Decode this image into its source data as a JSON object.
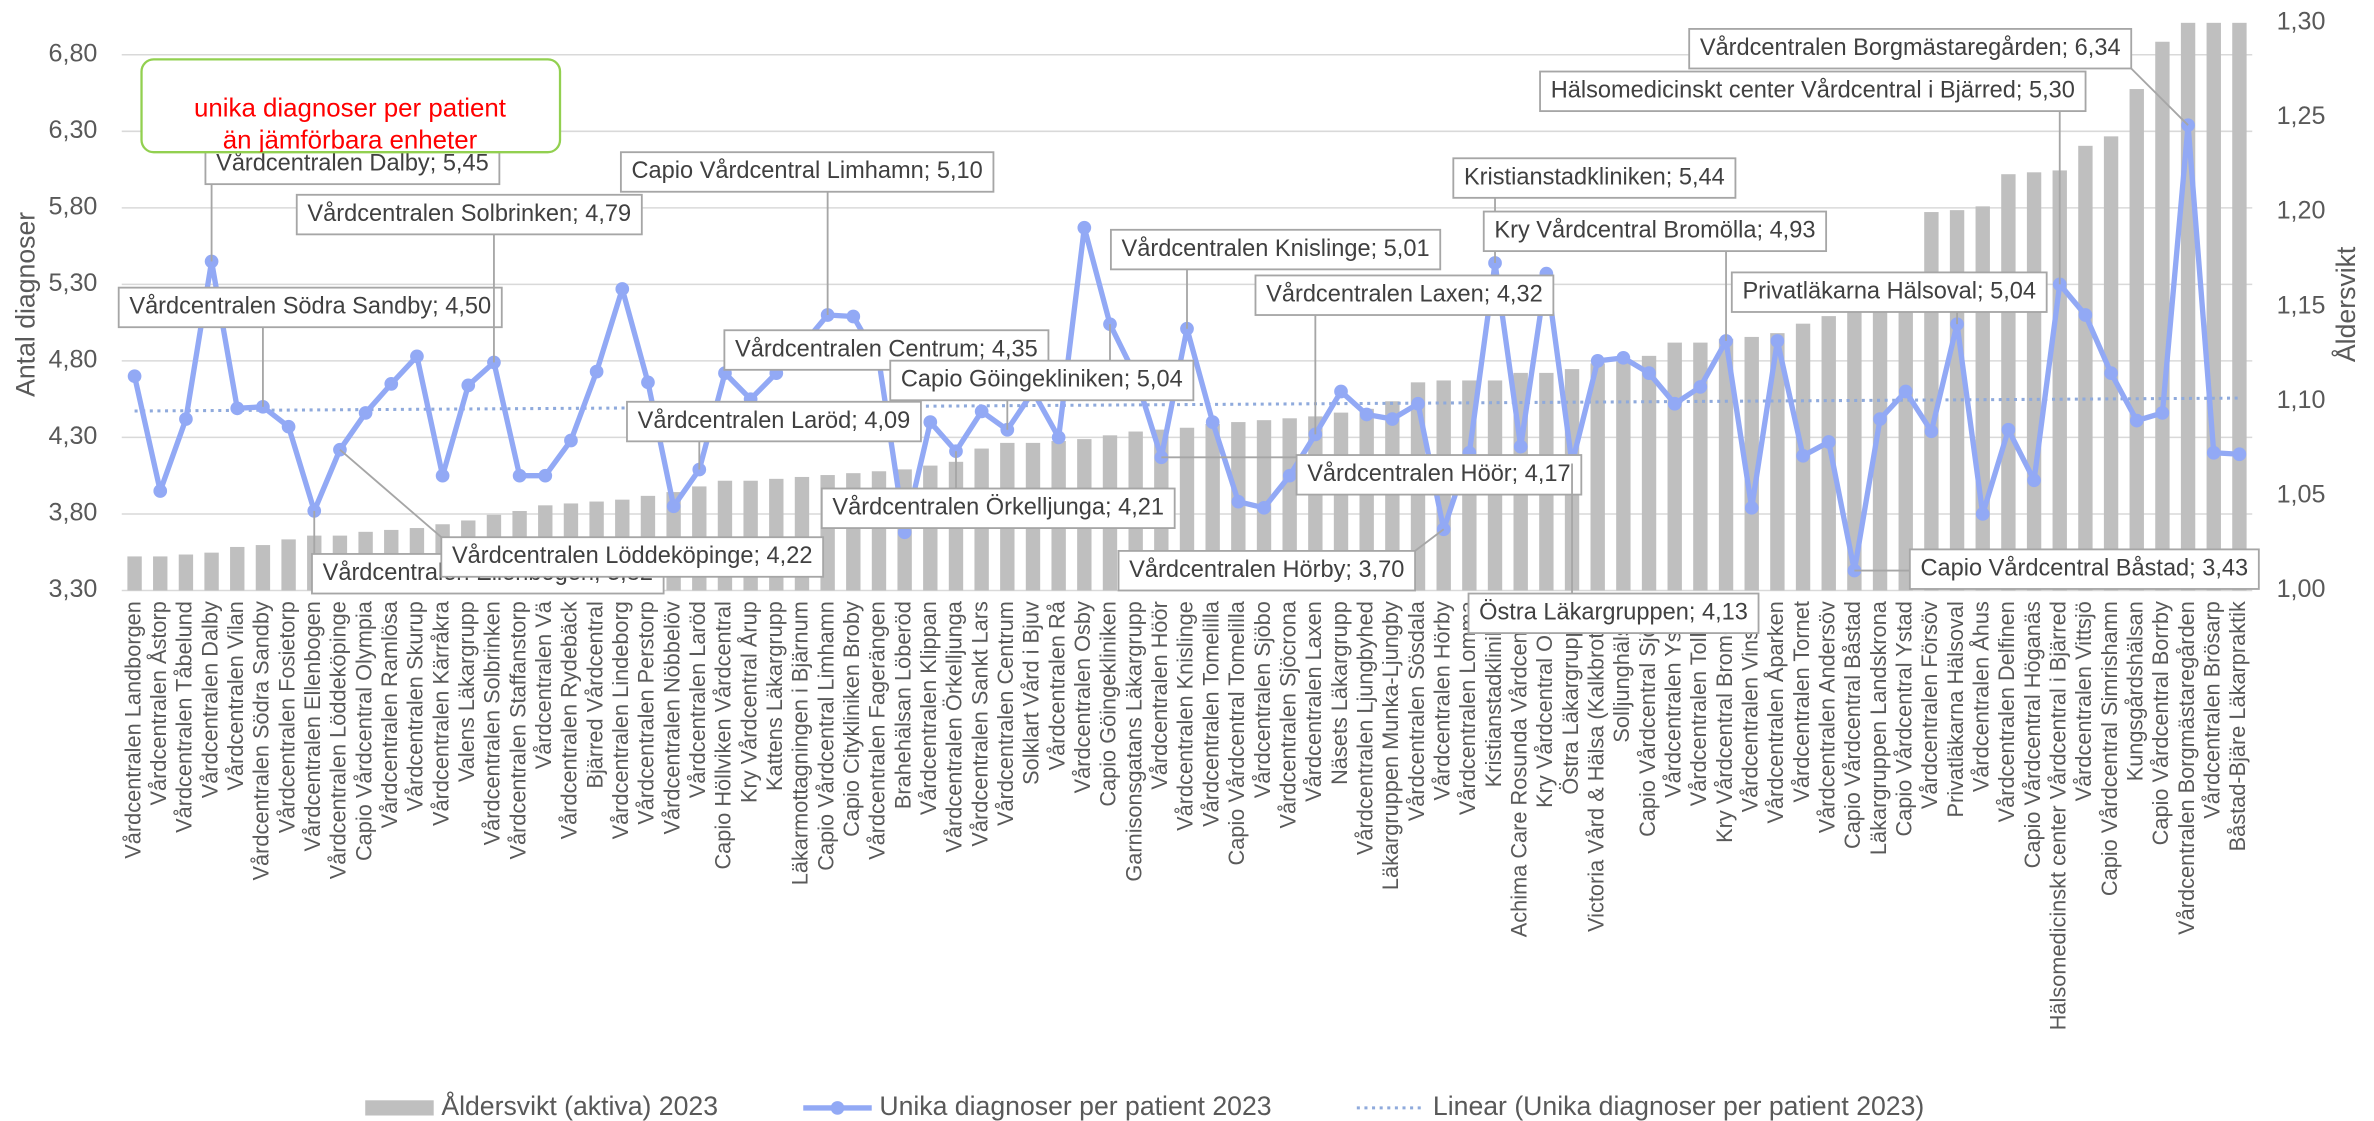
{
  "chart_data": {
    "type": "bar-line",
    "y_label": "Antal diagnoser",
    "y2_label": "Åldersvikt",
    "note": [
      "unika diagnoser per patient",
      "än jämförbara enheter"
    ],
    "note_color": "#ff0000",
    "note_border": "#92d050",
    "categories": [
      "Vårdcentralen Landborgen",
      "Vårdcentralen Åstorp",
      "Vårdcentralen Tåbelund",
      "Vårdcentralen Dalby",
      "Vårdcentralen Vilan",
      "Vårdcentralen Södra Sandby",
      "Vårdcentralen Fosietorp",
      "Vårdcentralen Ellenbogen",
      "Vårdcentralen Löddeköpinge",
      "Capio Vårdcentral Olympia",
      "Vårdcentralen Ramlösa",
      "Vårdcentralen Skurup",
      "Vårdcentralen Kärråkra",
      "Valens Läkargrupp",
      "Vårdcentralen Solbrinken",
      "Vårdcentralen Staffanstorp",
      "Vårdcentralen Vä",
      "Vårdcentralen Rydebäck",
      "Bjärred Vårdcentral",
      "Vårdcentralen Lindeborg",
      "Vårdcentralen Perstorp",
      "Vårdcentralen Nöbbelöv",
      "Vårdcentralen Laröd",
      "Capio Höllviken Vårdcentral",
      "Kry Vårdcentral Årup",
      "Kattens Läkargrupp",
      "Läkarmottagningen i Bjärnum",
      "Capio Vårdcentral Limhamn",
      "Capio Citykliniken Broby",
      "Vårdcentralen Fagerängen",
      "Brahehälsan Löberöd",
      "Vårdcentralen Klippan",
      "Vårdcentralen Örkelljunga",
      "Vårdcentralen Sankt Lars",
      "Vårdcentralen Centrum",
      "Solklart Vård i Bjuv",
      "Vårdcentralen Rå",
      "Vårdcentralen Osby",
      "Capio Göingekliniken",
      "Garnisonsgatans Läkargrupp",
      "Vårdcentralen Höör",
      "Vårdcentralen Knislinge",
      "Vårdcentralen Tomelilla",
      "Capio Vårdcentral Tomelilla",
      "Vårdcentralen Sjöbo",
      "Vårdcentralen Sjöcrona",
      "Vårdcentralen Laxen",
      "Näsets Läkargrupp",
      "Vårdcentralen Ljungbyhed",
      "Läkargruppen Munka-Ljungby",
      "Vårdcentralen Sösdala",
      "Vårdcentralen Hörby",
      "Vårdcentralen Lomma",
      "Kristianstadkliniken",
      "Achima Care Rosunda Vårdcentral",
      "Kry Vårdcentral Osby",
      "Östra Läkargruppen",
      "Victoria Vård & Hälsa (Kalkbrottet)",
      "Solljunghälsan",
      "Capio Vårdcentral Sjöbo",
      "Vårdcentralen Ystad",
      "Vårdcentralen Tollarp",
      "Kry Vårdcentral Bromölla",
      "Vårdcentralen Vinslöv",
      "Vårdcentralen Åparken",
      "Vårdcentralen Tornet",
      "Vårdcentralen Andersöv",
      "Capio Vårdcentral Båstad",
      "Läkargruppen Landskrona",
      "Capio Vårdcentral Ystad",
      "Vårdcentralen Försöv",
      "Privatläkarna Hälsoval",
      "Vårdcentralen Åhus",
      "Vårdcentralen Delfinen",
      "Capio Vårdcentral Höganäs",
      "Hälsomedicinskt center Vårdcentral i Bjärred",
      "Vårdcentralen Vittsjö",
      "Capio Vårdcentral Simrishamn",
      "Kungsgårdshälsan",
      "Capio Vårdcentral Borrby",
      "Vårdcentralen Borgmästaregården",
      "Vårdcentralen Brösarp",
      "Båstad-Bjäre Läkarpraktik"
    ],
    "series": [
      {
        "name": "Åldersvikt (aktiva) 2023",
        "type": "bar",
        "axis": "y2",
        "color": "#bfbfbf",
        "values": [
          1.018,
          1.018,
          1.019,
          1.02,
          1.023,
          1.024,
          1.027,
          1.029,
          1.029,
          1.031,
          1.032,
          1.033,
          1.035,
          1.037,
          1.04,
          1.042,
          1.045,
          1.046,
          1.047,
          1.048,
          1.05,
          1.052,
          1.055,
          1.058,
          1.058,
          1.059,
          1.06,
          1.061,
          1.062,
          1.063,
          1.064,
          1.066,
          1.068,
          1.075,
          1.078,
          1.078,
          1.079,
          1.08,
          1.082,
          1.084,
          1.085,
          1.086,
          1.088,
          1.089,
          1.09,
          1.091,
          1.092,
          1.094,
          1.096,
          1.1,
          1.11,
          1.111,
          1.111,
          1.111,
          1.115,
          1.115,
          1.117,
          1.12,
          1.121,
          1.124,
          1.131,
          1.131,
          1.133,
          1.134,
          1.136,
          1.141,
          1.145,
          1.15,
          1.155,
          1.158,
          1.2,
          1.201,
          1.203,
          1.22,
          1.221,
          1.222,
          1.235,
          1.24,
          1.265,
          1.29,
          1.3,
          1.3,
          1.3
        ]
      },
      {
        "name": "Unika diagnoser per patient 2023",
        "type": "line",
        "color": "#92a9f5",
        "values": [
          4.7,
          3.95,
          4.42,
          5.45,
          4.49,
          4.5,
          4.37,
          3.82,
          4.22,
          4.46,
          4.65,
          4.83,
          4.05,
          4.64,
          4.79,
          4.05,
          4.05,
          4.28,
          4.73,
          5.27,
          4.66,
          3.85,
          4.09,
          4.72,
          4.55,
          4.72,
          4.9,
          5.1,
          5.09,
          4.8,
          3.68,
          4.4,
          4.21,
          4.47,
          4.35,
          4.6,
          4.3,
          5.67,
          5.04,
          4.7,
          4.17,
          5.01,
          4.4,
          3.88,
          3.84,
          4.05,
          4.32,
          4.6,
          4.45,
          4.42,
          4.52,
          3.7,
          4.2,
          5.44,
          4.24,
          5.37,
          4.13,
          4.8,
          4.82,
          4.72,
          4.52,
          4.63,
          4.93,
          3.84,
          4.93,
          4.18,
          4.27,
          3.43,
          4.42,
          4.6,
          4.34,
          5.04,
          3.8,
          4.35,
          4.02,
          5.3,
          5.1,
          4.72,
          4.41,
          4.46,
          6.34,
          4.2,
          4.19
        ],
        "value_labels": [
          null,
          null,
          null,
          "Vårdcentralen Dalby; 5,45",
          null,
          "Vårdcentralen Södra Sandby; 4,50",
          null,
          "Vårdcentralen Ellenbogen; 3,82",
          "Vårdcentralen Löddeköpinge; 4,22",
          null,
          null,
          null,
          null,
          null,
          "Vårdcentralen Solbrinken; 4,79",
          null,
          null,
          null,
          null,
          null,
          null,
          null,
          "Vårdcentralen Laröd; 4,09",
          null,
          null,
          null,
          null,
          "Capio Vårdcentral Limhamn; 5,10",
          null,
          null,
          null,
          null,
          "Vårdcentralen Örkelljunga; 4,21",
          null,
          "Vårdcentralen Centrum; 4,35",
          null,
          null,
          null,
          "Capio Göingekliniken; 5,04",
          null,
          "Vårdcentralen Höör; 4,17",
          "Vårdcentralen Knislinge; 5,01",
          null,
          null,
          null,
          null,
          "Vårdcentralen Laxen; 4,32",
          null,
          null,
          null,
          null,
          "Vårdcentralen Hörby; 3,70",
          null,
          "Kristianstadkliniken; 5,44",
          null,
          null,
          "Östra Läkargruppen; 4,13",
          null,
          null,
          null,
          null,
          null,
          "Kry Vårdcentral Bromölla; 4,93",
          null,
          null,
          null,
          null,
          "Capio Vårdcentral Båstad; 3,43",
          null,
          null,
          null,
          "Privatläkarna Hälsoval; 5,04",
          null,
          null,
          null,
          "Hälsomedicinskt center Vårdcentral i Bjärred; 5,30",
          null,
          null,
          null,
          null,
          "Vårdcentralen Borgmästaregården; 6,34",
          null,
          null
        ],
        "trendline": {
          "name": "Linear (Unika diagnoser per patient 2023)",
          "type": "linear",
          "color": "#8faadc"
        }
      }
    ],
    "ylim": [
      3.3,
      6.8
    ],
    "yticks": [
      {
        "value": 3.3,
        "label": "3,30"
      },
      {
        "value": 3.8,
        "label": "3,80"
      },
      {
        "value": 4.3,
        "label": "4,30"
      },
      {
        "value": 4.8,
        "label": "4,80"
      },
      {
        "value": 5.3,
        "label": "5,30"
      },
      {
        "value": 5.8,
        "label": "5,80"
      },
      {
        "value": 6.3,
        "label": "6,30"
      },
      {
        "value": 6.8,
        "label": "6,80"
      }
    ],
    "y2lim": [
      1.0,
      1.3
    ],
    "y2ticks": [
      {
        "value": 1.0,
        "label": "1,00"
      },
      {
        "value": 1.05,
        "label": "1,05"
      },
      {
        "value": 1.1,
        "label": "1,10"
      },
      {
        "value": 1.15,
        "label": "1,15"
      },
      {
        "value": 1.2,
        "label": "1,20"
      },
      {
        "value": 1.25,
        "label": "1,25"
      },
      {
        "value": 1.3,
        "label": "1,30"
      }
    ],
    "grid": true,
    "legend": "bottom"
  }
}
